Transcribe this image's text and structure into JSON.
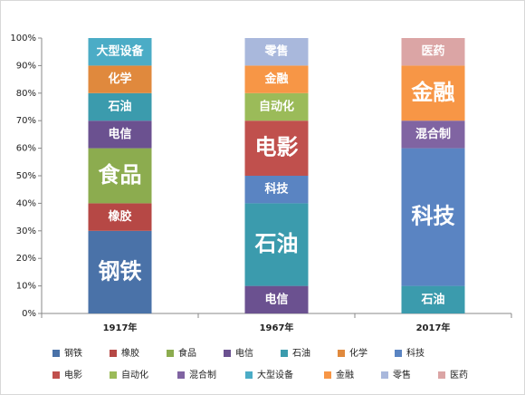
{
  "chart_data": {
    "type": "stacked_bar",
    "categories": [
      "1917年",
      "1967年",
      "2017年"
    ],
    "series": [
      {
        "name": "钢铁",
        "color": "#4a72a8",
        "values": [
          30,
          0,
          0
        ]
      },
      {
        "name": "橡胶",
        "color": "#b64845",
        "values": [
          10,
          0,
          0
        ]
      },
      {
        "name": "食品",
        "color": "#8cac4f",
        "values": [
          20,
          0,
          0
        ]
      },
      {
        "name": "电信",
        "color": "#6b5190",
        "values": [
          10,
          10,
          0
        ]
      },
      {
        "name": "石油",
        "color": "#3b9bad",
        "values": [
          10,
          30,
          10
        ]
      },
      {
        "name": "化学",
        "color": "#e0893d",
        "values": [
          10,
          0,
          0
        ]
      },
      {
        "name": "科技",
        "color": "#5a84c2",
        "values": [
          0,
          10,
          50
        ]
      },
      {
        "name": "电影",
        "color": "#c0504d",
        "values": [
          0,
          20,
          0
        ]
      },
      {
        "name": "自动化",
        "color": "#9bbb59",
        "values": [
          0,
          10,
          0
        ]
      },
      {
        "name": "混合制",
        "color": "#8064a2",
        "values": [
          0,
          0,
          10
        ]
      },
      {
        "name": "大型设备",
        "color": "#4bacc6",
        "values": [
          10,
          0,
          0
        ]
      },
      {
        "name": "金融",
        "color": "#f79646",
        "values": [
          0,
          10,
          20
        ]
      },
      {
        "name": "零售",
        "color": "#a9b8dc",
        "values": [
          0,
          10,
          0
        ]
      },
      {
        "name": "医药",
        "color": "#dba5a5",
        "values": [
          0,
          0,
          10
        ]
      }
    ],
    "ylim": [
      0,
      100
    ],
    "yticks": [
      {
        "value": 0,
        "label": "0%"
      },
      {
        "value": 10,
        "label": "10%"
      },
      {
        "value": 20,
        "label": "20%"
      },
      {
        "value": 30,
        "label": "30%"
      },
      {
        "value": 40,
        "label": "40%"
      },
      {
        "value": 50,
        "label": "50%"
      },
      {
        "value": 60,
        "label": "60%"
      },
      {
        "value": 70,
        "label": "70%"
      },
      {
        "value": 80,
        "label": "80%"
      },
      {
        "value": 90,
        "label": "90%"
      },
      {
        "value": 100,
        "label": "100%"
      }
    ],
    "legend": "bottom"
  }
}
